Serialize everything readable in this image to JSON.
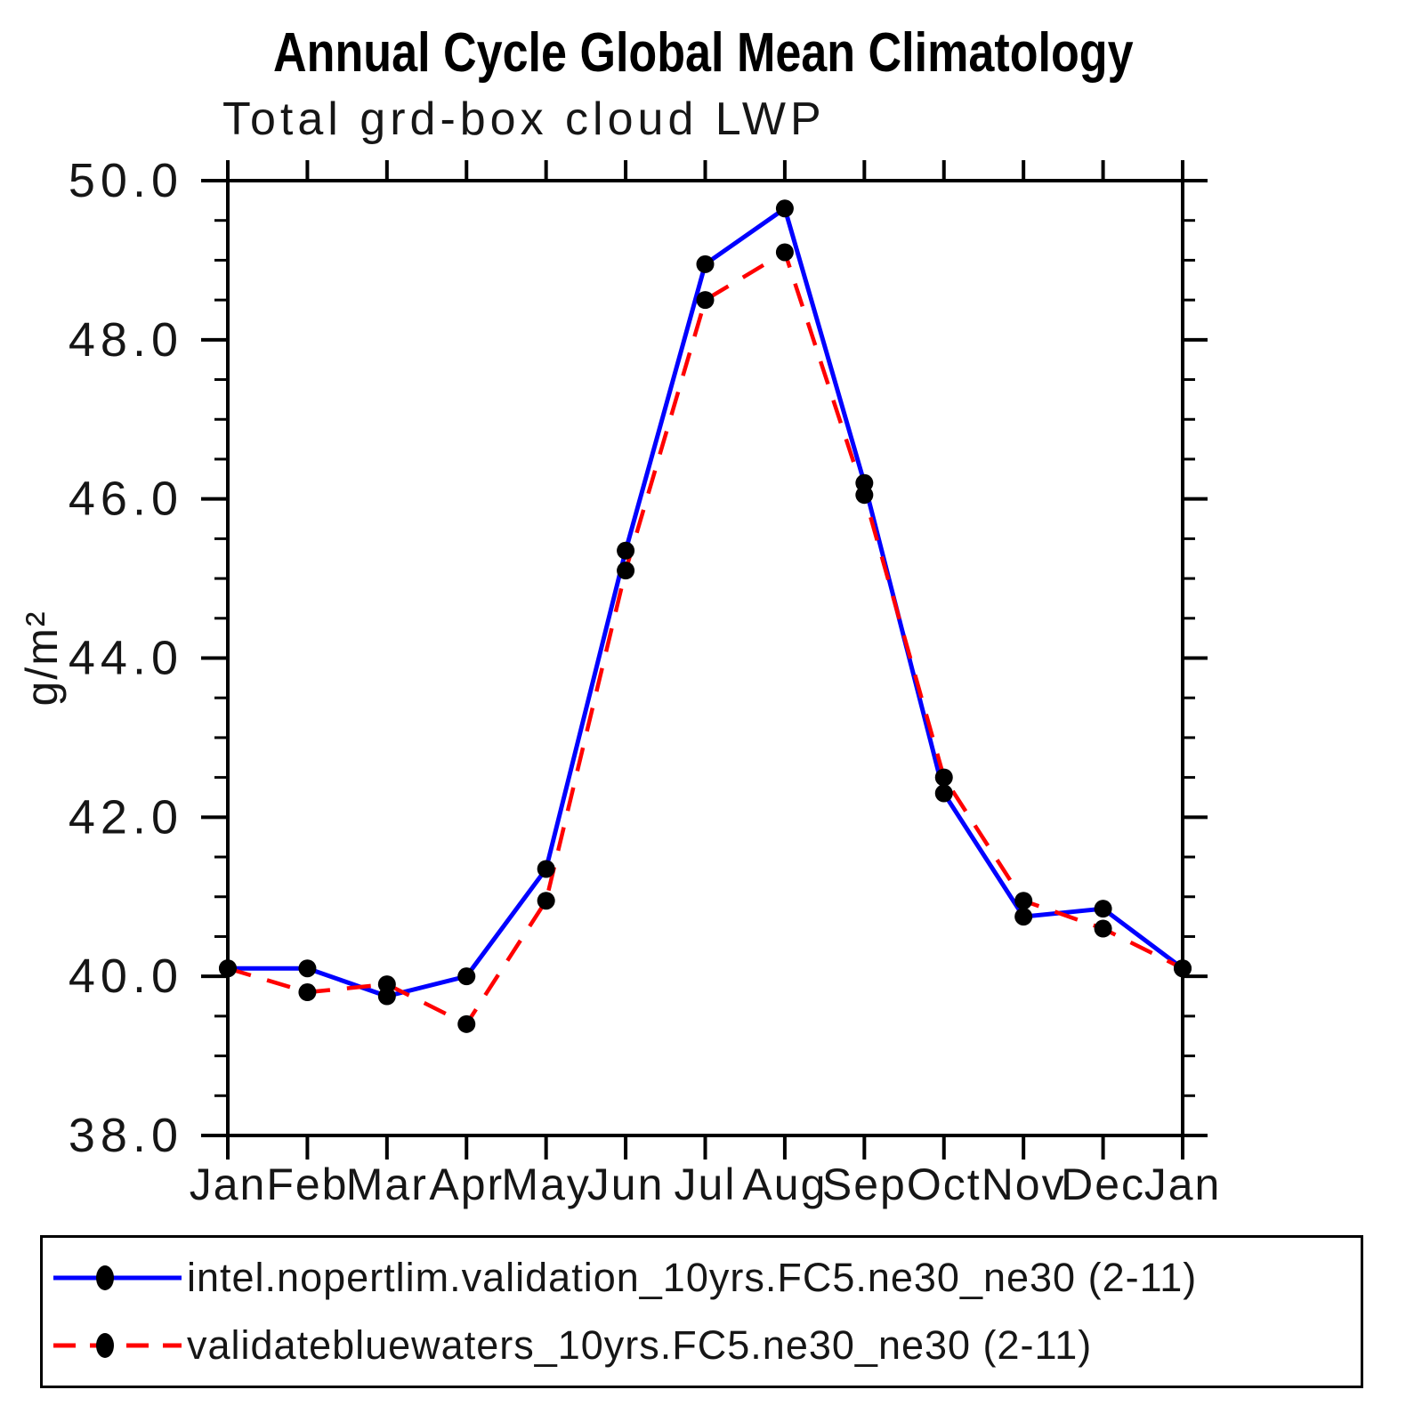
{
  "chart_data": {
    "type": "line",
    "title": "Annual Cycle Global Mean Climatology",
    "subtitle": "Total grd-box cloud LWP",
    "ylabel": "g/m²",
    "xlabel": "",
    "categories": [
      "Jan",
      "Feb",
      "Mar",
      "Apr",
      "May",
      "Jun",
      "Jul",
      "Aug",
      "Sep",
      "Oct",
      "Nov",
      "Dec",
      "Jan"
    ],
    "ylim": [
      38.0,
      50.0
    ],
    "yticks": [
      38.0,
      40.0,
      42.0,
      44.0,
      46.0,
      48.0,
      50.0
    ],
    "yticklabels": [
      "38.0",
      "40.0",
      "42.0",
      "44.0",
      "46.0",
      "48.0",
      "50.0"
    ],
    "yminor_step": 0.5,
    "grid": "off",
    "legend_position": "bottom-box",
    "marker": {
      "shape": "filled-circle",
      "color": "#000000"
    },
    "frame_color": "#000000",
    "series": [
      {
        "name": "intel.nopertlim.validation_10yrs.FC5.ne30_ne30 (2-11)",
        "color": "#0000ff",
        "line_style": "solid",
        "values": [
          40.1,
          40.1,
          39.75,
          40.0,
          41.35,
          45.35,
          48.95,
          49.65,
          46.2,
          42.3,
          40.75,
          40.85,
          40.1
        ]
      },
      {
        "name": "validatebluewaters_10yrs.FC5.ne30_ne30 (2-11)",
        "color": "#ff0000",
        "line_style": "dashed",
        "values": [
          40.1,
          39.8,
          39.9,
          39.4,
          40.95,
          45.1,
          48.5,
          49.1,
          46.05,
          42.5,
          40.95,
          40.6,
          40.1
        ]
      }
    ]
  }
}
